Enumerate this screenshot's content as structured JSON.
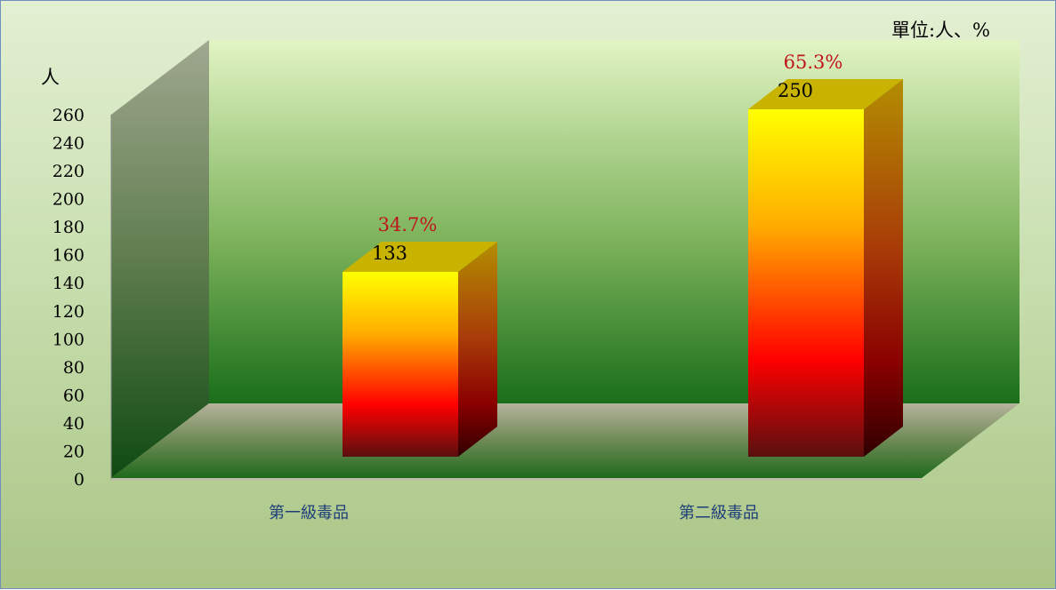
{
  "chart_data": {
    "type": "bar",
    "categories": [
      "第一級毒品",
      "第二級毒品"
    ],
    "values": [
      133,
      250
    ],
    "data_labels": [
      "133",
      "250"
    ],
    "percent_labels": [
      "34.7%",
      "65.3%"
    ],
    "ylabel": "人",
    "unit_note": "單位:人、%",
    "yticks": [
      0,
      20,
      40,
      60,
      80,
      100,
      120,
      140,
      160,
      180,
      200,
      220,
      240,
      260
    ],
    "ylim": [
      0,
      260
    ],
    "grid": false,
    "legend": "none",
    "three_d": true
  },
  "colors": {
    "percent_label": "#c0141c",
    "category_label": "#1f3f7a",
    "bar_top": "#ffff00",
    "bar_middle": "#ff9a00",
    "bar_lower": "#ff0000",
    "bar_bottom": "#5a0f0f",
    "back_wall_top": "#e2f4c4",
    "back_wall_bottom": "#1a6e1a"
  }
}
